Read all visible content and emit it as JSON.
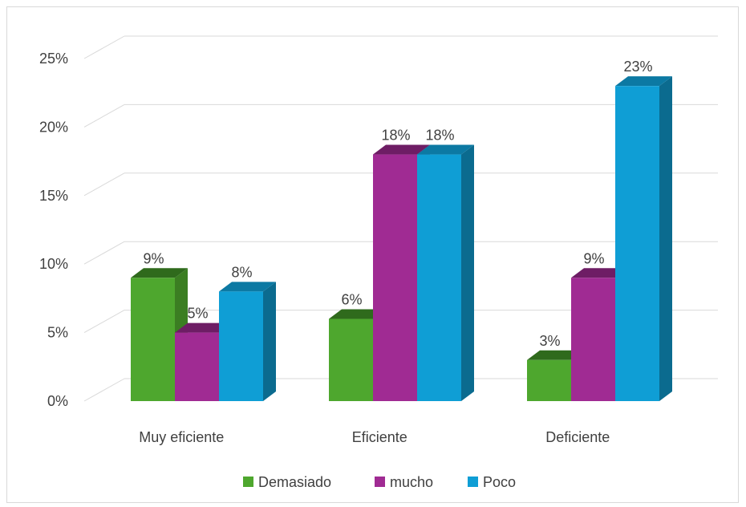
{
  "chart_data": {
    "type": "bar",
    "categories": [
      "Muy eficiente",
      "Eficiente",
      "Deficiente"
    ],
    "series": [
      {
        "name": "Demasiado",
        "values": [
          9,
          6,
          3
        ],
        "labels": [
          "9%",
          "6%",
          "3%"
        ],
        "color": "#4ea72e",
        "side_color": "#3b7e22",
        "top_color": "#2f6a1c"
      },
      {
        "name": "mucho",
        "values": [
          5,
          18,
          9
        ],
        "labels": [
          "5%",
          "18%",
          "9%"
        ],
        "color": "#a02b93",
        "side_color": "#78206e",
        "top_color": "#6e1d65"
      },
      {
        "name": "Poco",
        "values": [
          8,
          18,
          23
        ],
        "labels": [
          "8%",
          "18%",
          "23%"
        ],
        "color": "#0f9ed5",
        "side_color": "#0b6b8f",
        "top_color": "#0c79a3"
      }
    ],
    "y_ticks": [
      "0%",
      "5%",
      "10%",
      "15%",
      "20%",
      "25%"
    ],
    "ylim": [
      0,
      25
    ],
    "unit": "%",
    "grid": true,
    "legend_position": "bottom",
    "style": "3d-clustered-column"
  }
}
